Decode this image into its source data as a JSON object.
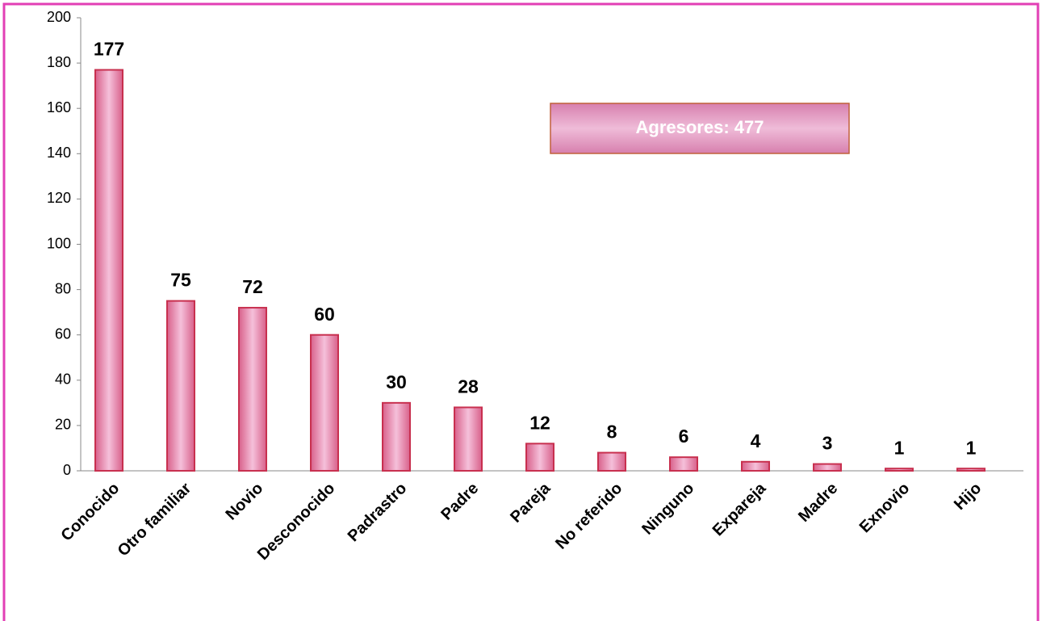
{
  "chart_data": {
    "type": "bar",
    "categories": [
      "Conocido",
      "Otro familiar",
      "Novio",
      "Desconocido",
      "Padrastro",
      "Padre",
      "Pareja",
      "No referido",
      "Ninguno",
      "Expareja",
      "Madre",
      "Exnovio",
      "Hijo"
    ],
    "values": [
      177,
      75,
      72,
      60,
      30,
      28,
      12,
      8,
      6,
      4,
      3,
      1,
      1
    ],
    "color": "#e98fbb",
    "edge_color": "#c8304f",
    "ylim": [
      0,
      200
    ],
    "yticks": [
      0,
      20,
      40,
      60,
      80,
      100,
      120,
      140,
      160,
      180,
      200
    ],
    "annotation": "Agresores: 477"
  }
}
